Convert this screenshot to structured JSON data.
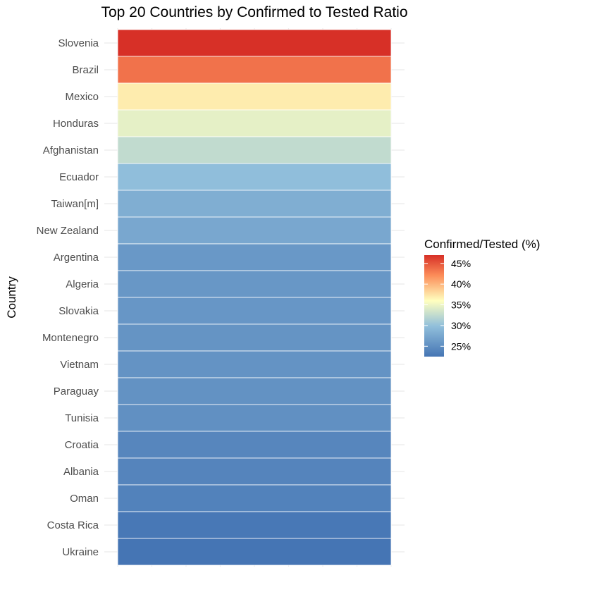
{
  "chart_data": {
    "type": "heatmap",
    "title": "Top 20 Countries by Confirmed to Tested Ratio",
    "xlabel": "",
    "ylabel": "Country",
    "categories": [
      "Slovenia",
      "Brazil",
      "Mexico",
      "Honduras",
      "Afghanistan",
      "Ecuador",
      "Taiwan[m]",
      "New Zealand",
      "Argentina",
      "Algeria",
      "Slovakia",
      "Montenegro",
      "Vietnam",
      "Paraguay",
      "Tunisia",
      "Croatia",
      "Albania",
      "Oman",
      "Costa Rica",
      "Ukraine"
    ],
    "values": [
      47.0,
      43.5,
      37.0,
      34.5,
      32.5,
      29.8,
      28.2,
      27.5,
      26.0,
      25.9,
      25.8,
      25.6,
      25.5,
      25.4,
      25.2,
      24.2,
      24.0,
      23.8,
      22.8,
      22.5
    ],
    "grid": true,
    "legend": {
      "title": "Confirmed/Tested (%)",
      "position": "right",
      "ticks": [
        25,
        30,
        35,
        40,
        45
      ],
      "tick_labels": [
        "25%",
        "30%",
        "35%",
        "40%",
        "45%"
      ],
      "range": [
        22.5,
        47.0
      ]
    },
    "colors": {
      "low": "#4575b4",
      "mid_low": "#91bfdb",
      "mid": "#ffffbf",
      "mid_high": "#fc8d59",
      "high": "#d73027",
      "tile_border": "#ffffff",
      "grid": "#ebebeb"
    }
  }
}
